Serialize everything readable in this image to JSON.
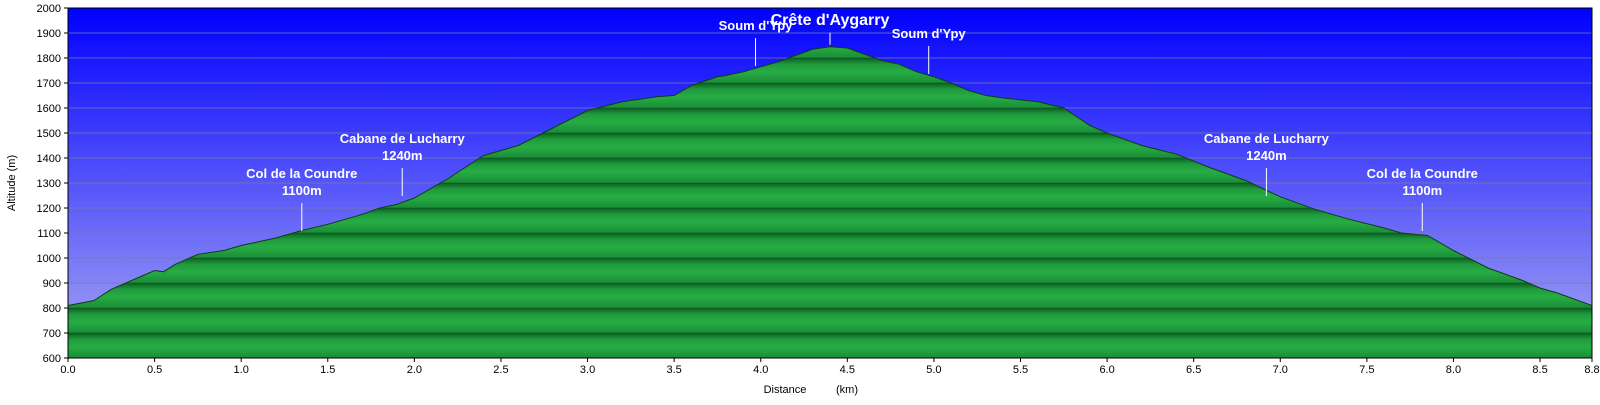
{
  "chart_data": {
    "type": "area",
    "title": "",
    "xlabel": "Distance",
    "xunit": "(km)",
    "ylabel": "Altitude (m)",
    "xlim": [
      0,
      8.8
    ],
    "ylim": [
      600,
      2000
    ],
    "x_ticks": [
      "0.0",
      "0.5",
      "1.0",
      "1.5",
      "2.0",
      "2.5",
      "3.0",
      "3.5",
      "4.0",
      "4.5",
      "5.0",
      "5.5",
      "6.0",
      "6.5",
      "7.0",
      "7.5",
      "8.0",
      "8.5",
      "8.8"
    ],
    "y_ticks": [
      "600",
      "700",
      "800",
      "900",
      "1000",
      "1100",
      "1200",
      "1300",
      "1400",
      "1500",
      "1600",
      "1700",
      "1800",
      "1900",
      "2000"
    ],
    "grid": true,
    "colors": {
      "sky_top": "#0000ff",
      "sky_bottom": "#a8a8f4",
      "fill": "#1f9a3c",
      "fill_dark": "#0c5a20",
      "line": "#123a1a"
    },
    "series": [
      {
        "x": [
          0,
          0.15,
          0.25,
          0.4,
          0.5,
          0.55,
          0.62,
          0.75,
          0.9,
          1.0,
          1.1,
          1.2,
          1.35,
          1.5,
          1.6,
          1.7,
          1.8,
          1.9,
          2.0,
          2.2,
          2.4,
          2.6,
          2.8,
          3.0,
          3.2,
          3.4,
          3.5,
          3.6,
          3.75,
          3.8,
          3.9,
          4.0,
          4.1,
          4.2,
          4.3,
          4.4,
          4.5,
          4.6,
          4.7,
          4.8,
          4.9,
          5.0,
          5.1,
          5.2,
          5.3,
          5.4,
          5.6,
          5.75,
          5.9,
          6.0,
          6.2,
          6.4,
          6.6,
          6.8,
          7.0,
          7.2,
          7.4,
          7.6,
          7.7,
          7.85,
          8.0,
          8.2,
          8.4,
          8.5,
          8.6,
          8.8
        ],
        "y": [
          810,
          830,
          875,
          920,
          950,
          945,
          975,
          1015,
          1030,
          1050,
          1065,
          1080,
          1110,
          1135,
          1155,
          1175,
          1200,
          1215,
          1240,
          1320,
          1410,
          1450,
          1520,
          1590,
          1625,
          1645,
          1650,
          1690,
          1725,
          1730,
          1745,
          1765,
          1785,
          1810,
          1835,
          1845,
          1840,
          1815,
          1790,
          1775,
          1745,
          1725,
          1700,
          1670,
          1650,
          1640,
          1625,
          1600,
          1530,
          1500,
          1450,
          1415,
          1360,
          1310,
          1245,
          1195,
          1155,
          1120,
          1100,
          1090,
          1030,
          960,
          910,
          880,
          860,
          810
        ]
      }
    ],
    "annotations": [
      {
        "lines": [
          "Col de la Coundre",
          "1100m"
        ],
        "x": 1.35,
        "y": 1100
      },
      {
        "lines": [
          "Cabane de Lucharry",
          "1240m"
        ],
        "x": 1.93,
        "y": 1240
      },
      {
        "lines": [
          "Soum d'Ypy"
        ],
        "x": 3.97,
        "y": 1760
      },
      {
        "lines": [
          "Crête d'Aygarry"
        ],
        "x": 4.4,
        "y": 1845,
        "big": true
      },
      {
        "lines": [
          "Soum d'Ypy"
        ],
        "x": 4.97,
        "y": 1728
      },
      {
        "lines": [
          "Cabane de Lucharry",
          "1240m"
        ],
        "x": 6.92,
        "y": 1240
      },
      {
        "lines": [
          "Col de la Coundre",
          "1100m"
        ],
        "x": 7.82,
        "y": 1100
      }
    ]
  }
}
